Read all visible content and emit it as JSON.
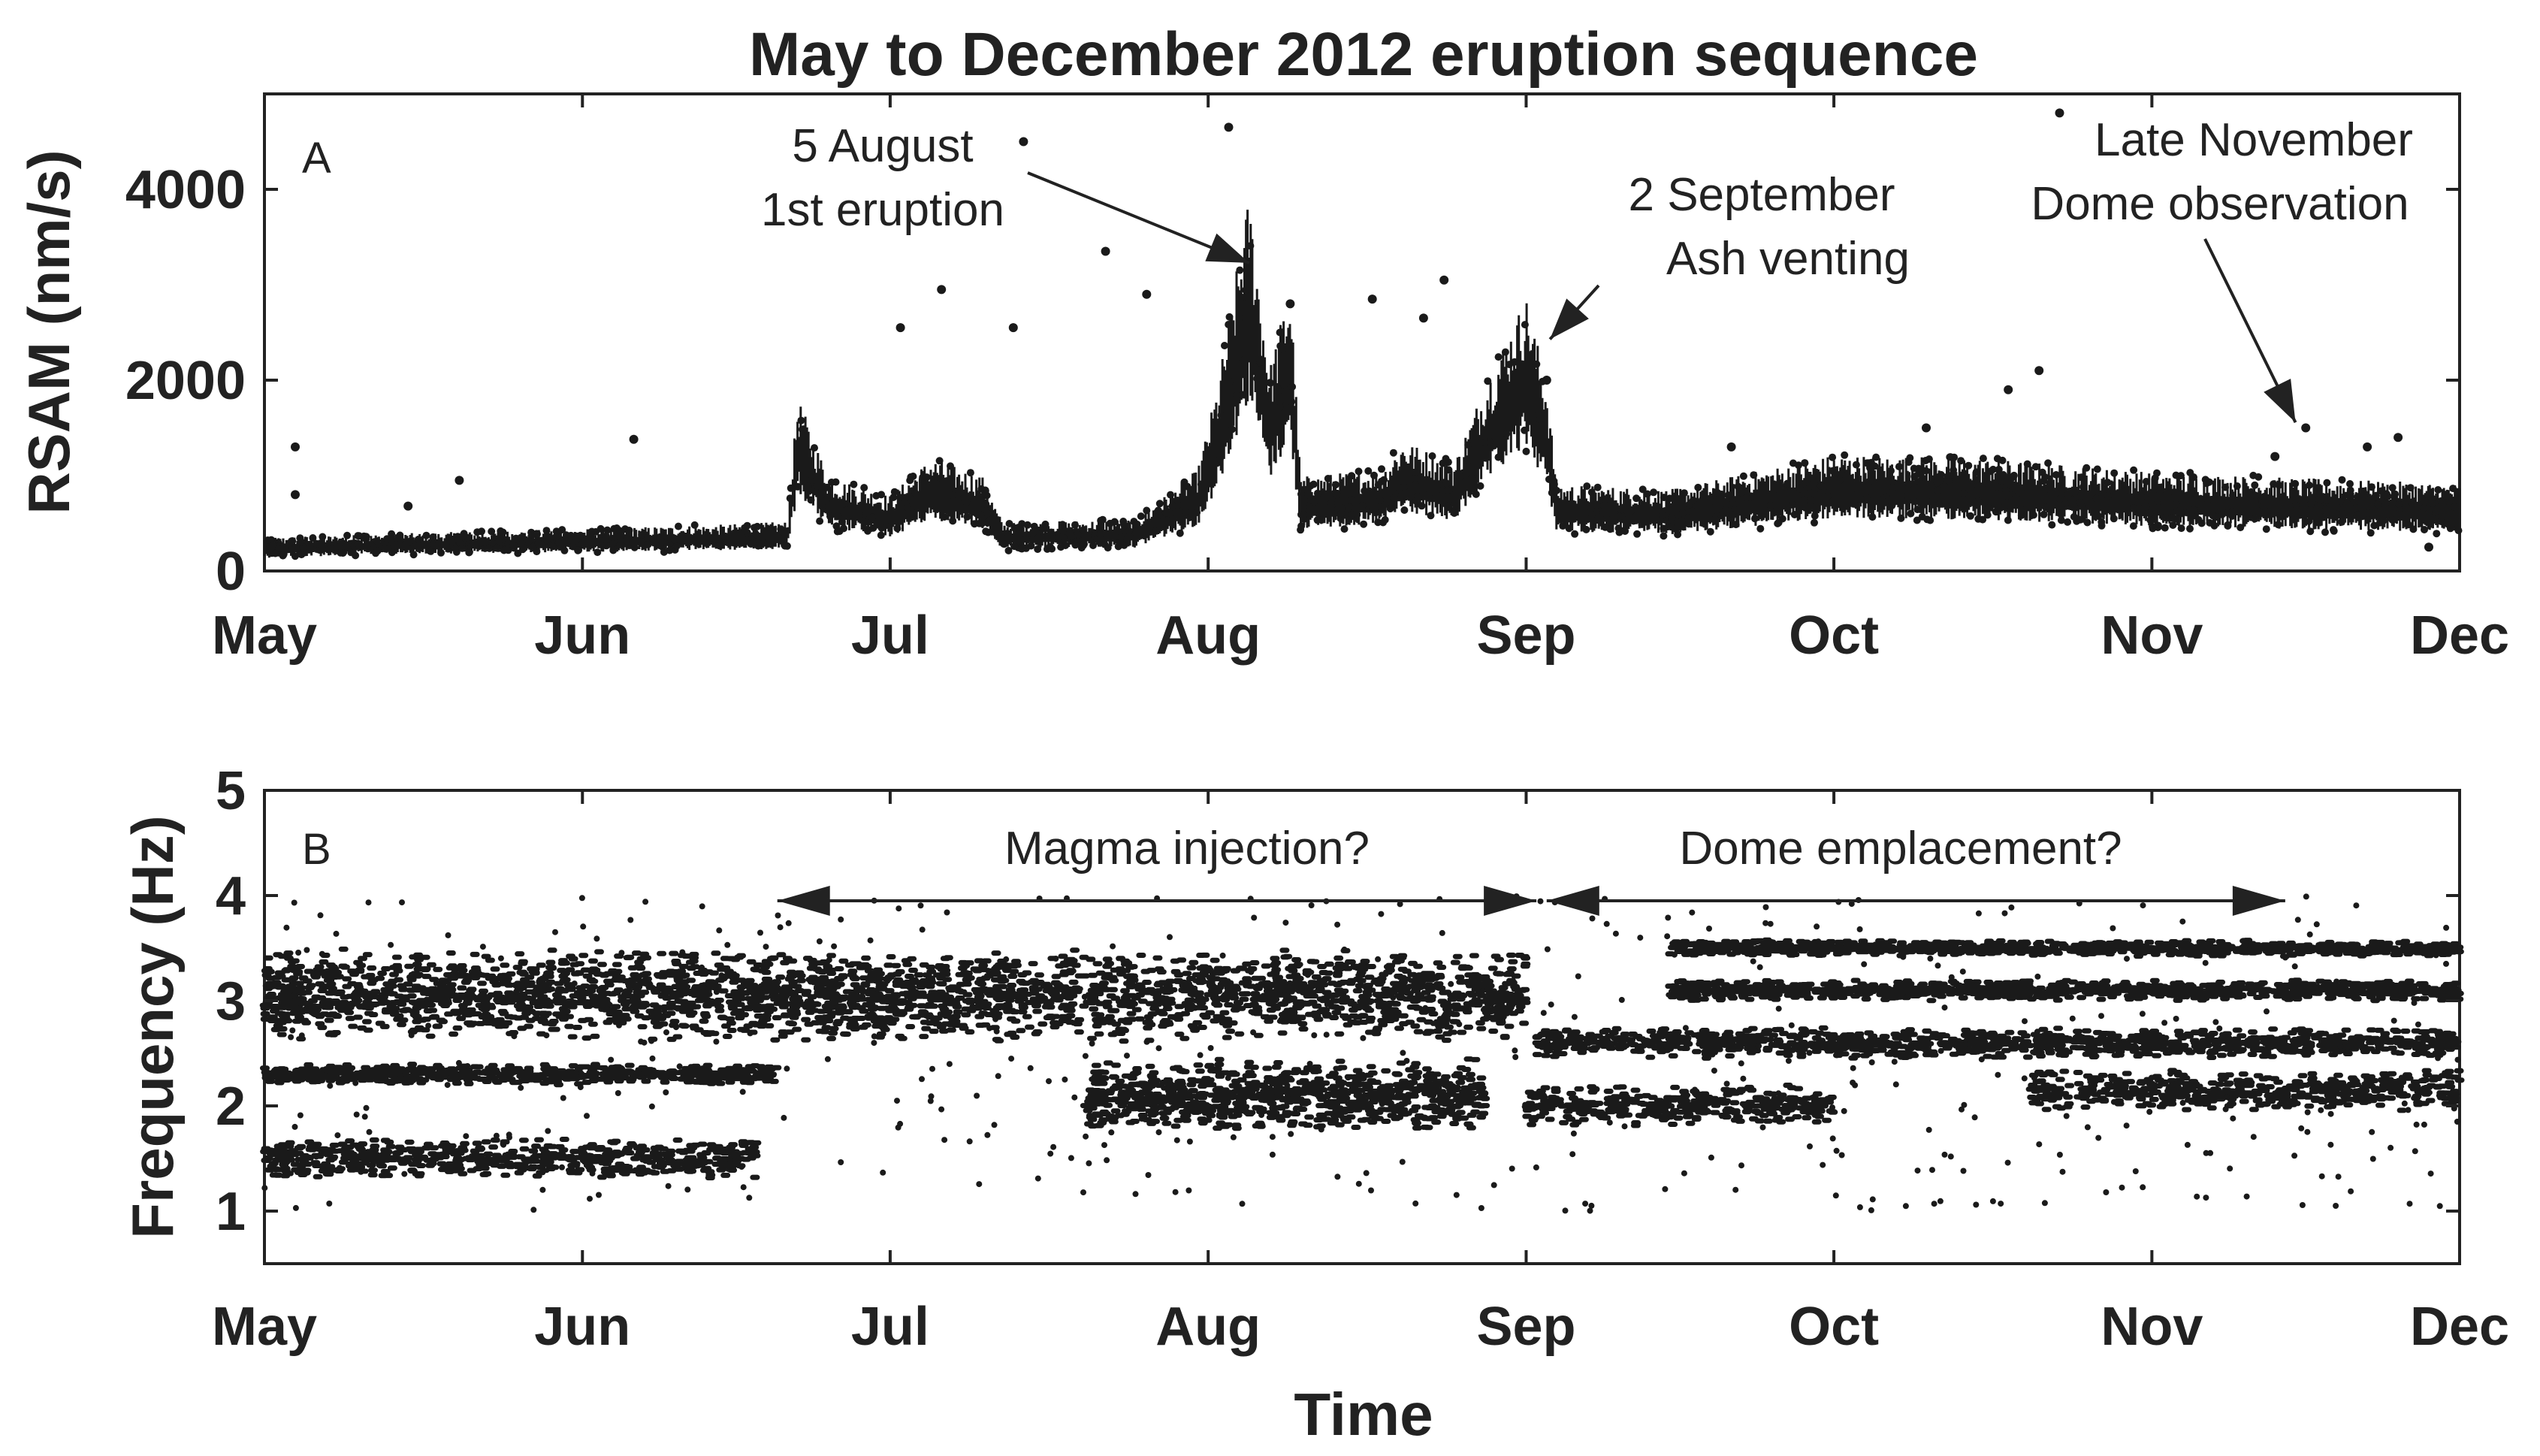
{
  "chart_data": [
    {
      "type": "scatter",
      "panel_label": "A",
      "title": "May to December 2012 eruption sequence",
      "ylabel": "RSAM (nm/s)",
      "ylim": [
        0,
        5000
      ],
      "yticks": [
        0,
        2000,
        4000
      ],
      "xlim": [
        "2012-05-01",
        "2012-12-01"
      ],
      "xticks": [
        "May",
        "Jun",
        "Jul",
        "Aug",
        "Sep",
        "Oct",
        "Nov",
        "Dec"
      ],
      "marker_color": "#1a1a1a",
      "baseline": [
        {
          "x": "2012-05-01",
          "y": 220
        },
        {
          "x": "2012-05-15",
          "y": 260
        },
        {
          "x": "2012-06-01",
          "y": 290
        },
        {
          "x": "2012-06-15",
          "y": 320
        },
        {
          "x": "2012-06-21",
          "y": 340
        },
        {
          "x": "2012-06-22",
          "y": 1200
        },
        {
          "x": "2012-06-25",
          "y": 650
        },
        {
          "x": "2012-07-01",
          "y": 520
        },
        {
          "x": "2012-07-05",
          "y": 780
        },
        {
          "x": "2012-07-10",
          "y": 650
        },
        {
          "x": "2012-07-12",
          "y": 330
        },
        {
          "x": "2012-07-25",
          "y": 360
        },
        {
          "x": "2012-07-31",
          "y": 700
        },
        {
          "x": "2012-08-02",
          "y": 1300
        },
        {
          "x": "2012-08-05",
          "y": 2600
        },
        {
          "x": "2012-08-07",
          "y": 1400
        },
        {
          "x": "2012-08-09",
          "y": 2000
        },
        {
          "x": "2012-08-10",
          "y": 650
        },
        {
          "x": "2012-08-18",
          "y": 700
        },
        {
          "x": "2012-08-20",
          "y": 900
        },
        {
          "x": "2012-08-25",
          "y": 750
        },
        {
          "x": "2012-08-28",
          "y": 1300
        },
        {
          "x": "2012-09-01",
          "y": 1900
        },
        {
          "x": "2012-09-03",
          "y": 1300
        },
        {
          "x": "2012-09-04",
          "y": 600
        },
        {
          "x": "2012-09-15",
          "y": 560
        },
        {
          "x": "2012-10-01",
          "y": 800
        },
        {
          "x": "2012-10-15",
          "y": 780
        },
        {
          "x": "2012-11-01",
          "y": 680
        },
        {
          "x": "2012-11-15",
          "y": 640
        },
        {
          "x": "2012-12-01",
          "y": 600
        }
      ],
      "outliers": [
        {
          "x": "2012-05-04",
          "y": 1300
        },
        {
          "x": "2012-05-04",
          "y": 800
        },
        {
          "x": "2012-05-15",
          "y": 680
        },
        {
          "x": "2012-05-20",
          "y": 950
        },
        {
          "x": "2012-06-06",
          "y": 1380
        },
        {
          "x": "2012-07-02",
          "y": 2550
        },
        {
          "x": "2012-07-06",
          "y": 2950
        },
        {
          "x": "2012-07-13",
          "y": 2550
        },
        {
          "x": "2012-07-14",
          "y": 4500
        },
        {
          "x": "2012-07-22",
          "y": 3350
        },
        {
          "x": "2012-07-26",
          "y": 2900
        },
        {
          "x": "2012-08-03",
          "y": 4650
        },
        {
          "x": "2012-08-09",
          "y": 2800
        },
        {
          "x": "2012-08-17",
          "y": 2850
        },
        {
          "x": "2012-08-22",
          "y": 2650
        },
        {
          "x": "2012-08-24",
          "y": 3050
        },
        {
          "x": "2012-09-03",
          "y": 2000
        },
        {
          "x": "2012-09-21",
          "y": 1300
        },
        {
          "x": "2012-10-10",
          "y": 1500
        },
        {
          "x": "2012-10-18",
          "y": 1900
        },
        {
          "x": "2012-10-21",
          "y": 2100
        },
        {
          "x": "2012-10-23",
          "y": 4800
        },
        {
          "x": "2012-11-13",
          "y": 1200
        },
        {
          "x": "2012-11-16",
          "y": 1500
        },
        {
          "x": "2012-11-22",
          "y": 1300
        },
        {
          "x": "2012-11-25",
          "y": 1400
        },
        {
          "x": "2012-11-28",
          "y": 250
        }
      ],
      "annotations": [
        {
          "text": [
            "5 August",
            "1st eruption"
          ],
          "target": {
            "x": "2012-08-05",
            "y": 3150
          }
        },
        {
          "text": [
            "2 September",
            "Ash venting"
          ],
          "target": {
            "x": "2012-09-02",
            "y": 2350
          }
        },
        {
          "text": [
            "Late November",
            "Dome observation"
          ],
          "target": {
            "x": "2012-11-15",
            "y": 1400
          }
        }
      ]
    },
    {
      "type": "scatter",
      "panel_label": "B",
      "xlabel": "Time",
      "ylabel": "Frequency (Hz)",
      "ylim": [
        0.5,
        5
      ],
      "yticks": [
        1,
        2,
        3,
        4,
        5
      ],
      "xlim": [
        "2012-05-01",
        "2012-12-01"
      ],
      "xticks": [
        "May",
        "Jun",
        "Jul",
        "Aug",
        "Sep",
        "Oct",
        "Nov",
        "Dec"
      ],
      "marker_color": "#1a1a1a",
      "bands": [
        {
          "from": "2012-05-01",
          "to": "2012-06-18",
          "center": 1.5,
          "spread": 0.2
        },
        {
          "from": "2012-05-01",
          "to": "2012-06-20",
          "center": 2.3,
          "spread": 0.1
        },
        {
          "from": "2012-05-01",
          "to": "2012-09-01",
          "center": 3.05,
          "spread": 0.45
        },
        {
          "from": "2012-07-20",
          "to": "2012-08-28",
          "center": 2.1,
          "spread": 0.35
        },
        {
          "from": "2012-09-01",
          "to": "2012-10-01",
          "center": 2.0,
          "spread": 0.2
        },
        {
          "from": "2012-09-02",
          "to": "2012-12-01",
          "center": 2.6,
          "spread": 0.15
        },
        {
          "from": "2012-09-15",
          "to": "2012-12-01",
          "center": 3.1,
          "spread": 0.1
        },
        {
          "from": "2012-09-15",
          "to": "2012-12-01",
          "center": 3.5,
          "spread": 0.08
        },
        {
          "from": "2012-10-20",
          "to": "2012-12-01",
          "center": 2.15,
          "spread": 0.2
        }
      ],
      "annotations": [
        {
          "text": "Magma injection?",
          "from": "2012-06-20",
          "to": "2012-09-02",
          "y": 3.95
        },
        {
          "text": "Dome emplacement?",
          "from": "2012-09-03",
          "to": "2012-11-14",
          "y": 3.95
        }
      ]
    }
  ]
}
